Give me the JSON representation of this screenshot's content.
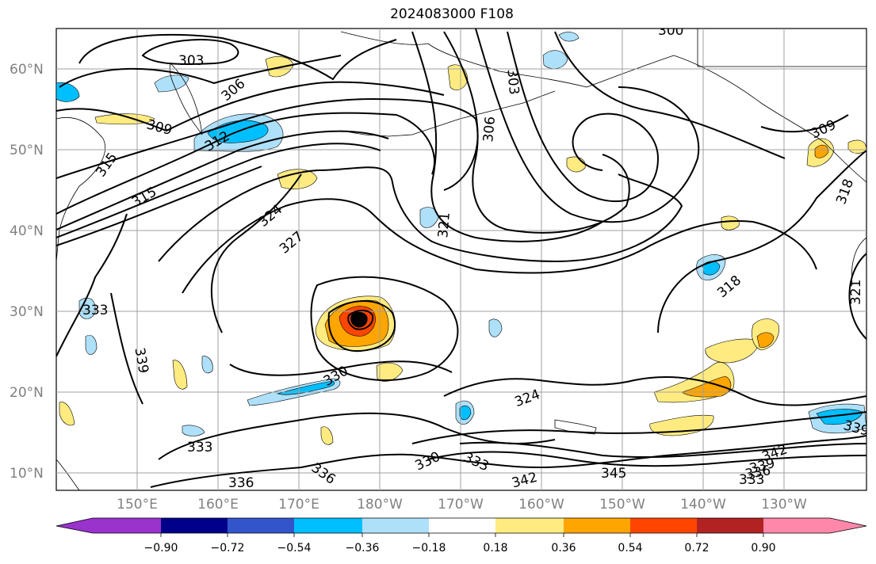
{
  "title": "2024083000 F108",
  "lat_labels": [
    "60°N",
    "50°N",
    "40°N",
    "30°N",
    "20°N",
    "10°N"
  ],
  "lon_labels": [
    "150°E",
    "160°E",
    "170°E",
    "180°W",
    "170°W",
    "160°W",
    "150°W",
    "140°W",
    "130°W"
  ],
  "contour_labels": [
    "303",
    "306",
    "309",
    "312",
    "315",
    "315",
    "324",
    "327",
    "321",
    "306",
    "303",
    "300",
    "309",
    "318",
    "333",
    "339",
    "330",
    "333",
    "336",
    "336",
    "330",
    "333",
    "342",
    "345",
    "324",
    "342",
    "339",
    "336",
    "333",
    "339",
    "318",
    "321"
  ],
  "colorbar": {
    "tick_labels": [
      "−0.90",
      "−0.72",
      "−0.54",
      "−0.36",
      "−0.18",
      "0.18",
      "0.36",
      "0.54",
      "0.72",
      "0.90"
    ],
    "colors": [
      "#9933cc",
      "#00008b",
      "#3355cc",
      "#00bfff",
      "#aee0fa",
      "#ffffff",
      "#ffeb80",
      "#ffa500",
      "#ff4500",
      "#b22222",
      "#ff88aa"
    ]
  },
  "colors": {
    "contour": "#000000",
    "grid": "#a0a0a0",
    "axis_label": "#808080"
  }
}
